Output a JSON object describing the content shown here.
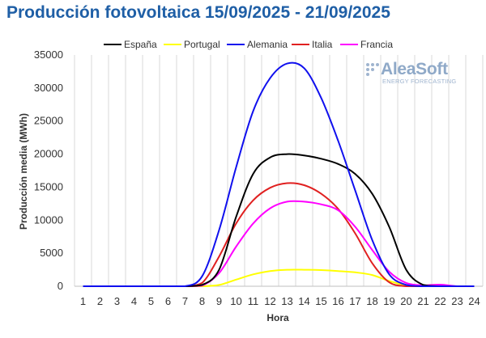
{
  "title": "Producción fotovoltaica 15/09/2025 - 21/09/2025",
  "logo": {
    "main": "AleaSoft",
    "sub": "ENERGY FORECASTING"
  },
  "chart_data": {
    "type": "line",
    "xlabel": "Hora",
    "ylabel": "Producción media (MWh)",
    "ylim": [
      0,
      35000
    ],
    "yticks": [
      0,
      5000,
      10000,
      15000,
      20000,
      25000,
      30000,
      35000
    ],
    "ytick_labels": [
      "0",
      "5000",
      "10000",
      "15000",
      "20000",
      "25000",
      "30000",
      "35000"
    ],
    "grid": "vertical",
    "legend": "top",
    "x": [
      1,
      2,
      3,
      4,
      5,
      6,
      7,
      8,
      9,
      10,
      11,
      12,
      13,
      14,
      15,
      16,
      17,
      18,
      19,
      20,
      21,
      22,
      23,
      24
    ],
    "x_labels": [
      "1",
      "2",
      "3",
      "4",
      "5",
      "6",
      "7",
      "8",
      "9",
      "10",
      "11",
      "12",
      "13",
      "14",
      "15",
      "16",
      "17",
      "18",
      "19",
      "20",
      "21",
      "22",
      "23",
      "24"
    ],
    "series": [
      {
        "name": "España",
        "color": "#000000",
        "values": [
          0,
          0,
          0,
          0,
          0,
          0,
          0,
          200,
          2500,
          10500,
          17000,
          19500,
          20000,
          19800,
          19300,
          18500,
          17000,
          14000,
          9000,
          2500,
          200,
          0,
          0,
          0
        ]
      },
      {
        "name": "Portugal",
        "color": "#ffff00",
        "values": [
          0,
          0,
          0,
          0,
          0,
          0,
          0,
          0,
          200,
          1000,
          1800,
          2300,
          2500,
          2500,
          2450,
          2300,
          2100,
          1700,
          800,
          150,
          0,
          0,
          0,
          0
        ]
      },
      {
        "name": "Alemania",
        "color": "#1010ee",
        "values": [
          0,
          0,
          0,
          0,
          0,
          0,
          0,
          1500,
          8500,
          18000,
          26500,
          31500,
          33700,
          33000,
          28500,
          22000,
          14500,
          7000,
          1800,
          200,
          0,
          0,
          0,
          0
        ]
      },
      {
        "name": "Italia",
        "color": "#e02020",
        "values": [
          0,
          0,
          0,
          0,
          0,
          0,
          0,
          500,
          4500,
          9500,
          13000,
          14900,
          15600,
          15300,
          14000,
          11700,
          8000,
          3500,
          600,
          0,
          0,
          0,
          0,
          0
        ]
      },
      {
        "name": "Francia",
        "color": "#ff00ff",
        "values": [
          0,
          0,
          0,
          0,
          0,
          0,
          0,
          100,
          2000,
          6000,
          9500,
          11800,
          12800,
          12800,
          12400,
          11500,
          9000,
          5500,
          2200,
          500,
          150,
          250,
          0,
          0
        ]
      }
    ]
  }
}
